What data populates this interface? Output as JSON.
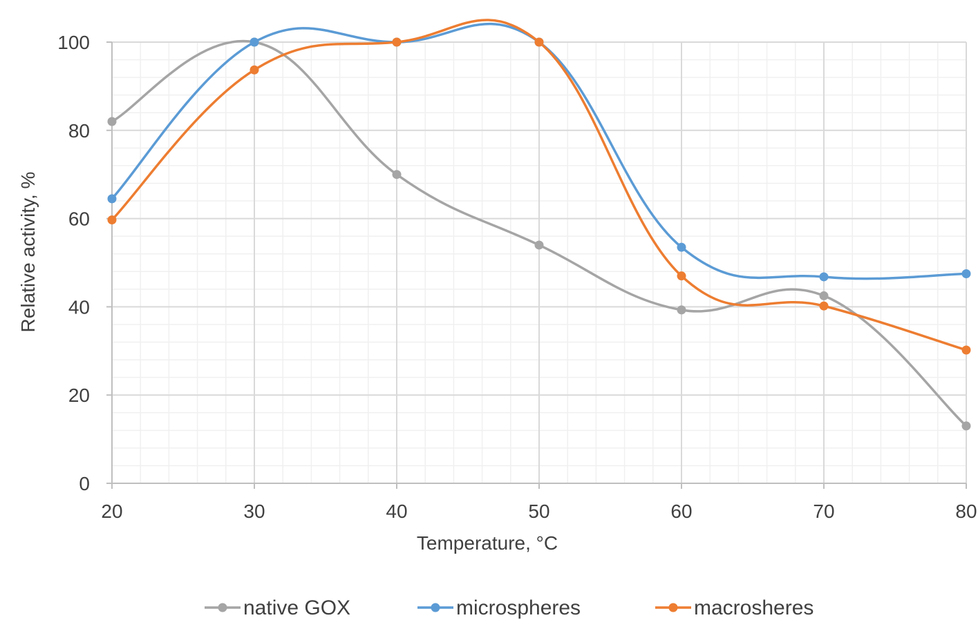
{
  "chart_data": {
    "type": "line",
    "title": "",
    "xlabel": "Temperature, °C",
    "ylabel": "Relative activity, %",
    "x": [
      20,
      30,
      40,
      50,
      60,
      70,
      80
    ],
    "xlim": [
      20,
      80
    ],
    "ylim": [
      0,
      100
    ],
    "x_ticks": [
      "20",
      "30",
      "40",
      "50",
      "60",
      "70",
      "80"
    ],
    "y_ticks": [
      "0",
      "20",
      "40",
      "60",
      "80",
      "100"
    ],
    "grid": true,
    "minor_grid": true,
    "smooth": true,
    "legend_position": "bottom",
    "series": [
      {
        "name": "native GOX",
        "color": "#A5A5A5",
        "values": [
          82,
          100,
          70,
          54,
          39.3,
          42.5,
          13
        ]
      },
      {
        "name": "microspheres",
        "color": "#5B9BD5",
        "values": [
          64.5,
          100,
          100,
          100,
          53.5,
          46.8,
          47.5
        ]
      },
      {
        "name": "macrosheres",
        "color": "#ED7D31",
        "values": [
          59.7,
          93.7,
          100,
          100,
          47,
          40.2,
          30.2
        ]
      }
    ]
  }
}
